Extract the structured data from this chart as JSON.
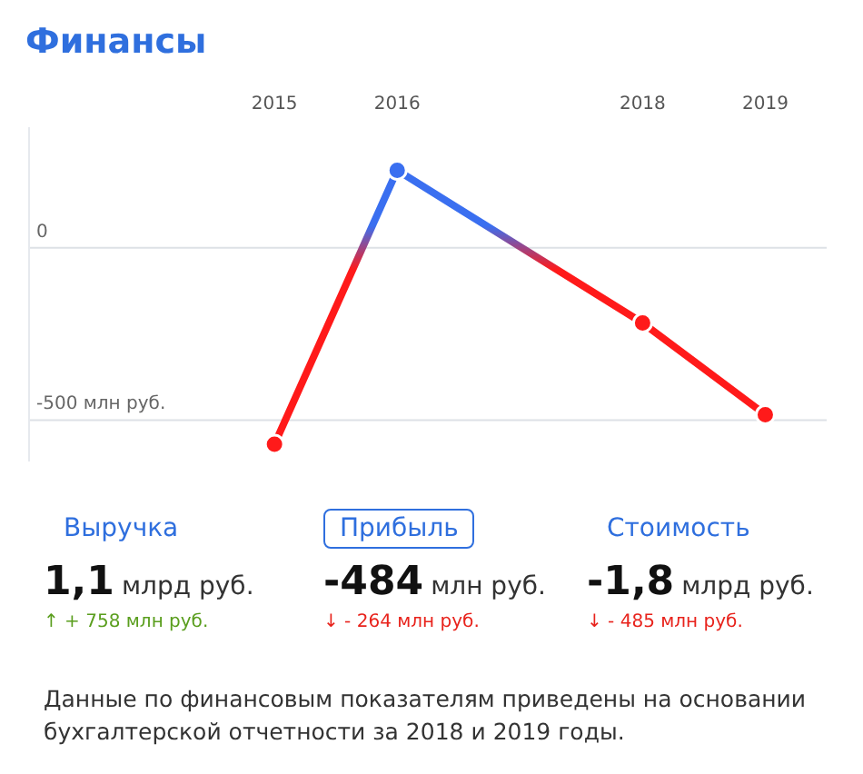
{
  "chart_data": {
    "type": "line",
    "title": "Финансы",
    "x": [
      2015,
      2016,
      2018,
      2019
    ],
    "series": [
      {
        "colors": [
          "#ff1a1a",
          "#3a6ff0",
          "#ff1a1a",
          "#ff1a1a"
        ],
        "values": [
          -570,
          225,
          -218,
          -484
        ]
      }
    ],
    "xlim": [
      2013,
      2019.5
    ],
    "xticks": [
      2015,
      2016,
      2018,
      2019
    ],
    "ylim": [
      -620,
      350
    ],
    "yticks": [
      0,
      {
        "value": -500,
        "label": "-500 млн руб."
      }
    ],
    "grid": "y",
    "marker": "circle",
    "line_style": "solid",
    "annotations": [
      "Выручка",
      "1,1",
      "млрд руб.",
      "↑ + 758 млн руб.",
      "Прибыль",
      "-484",
      "млн руб.",
      "↓ - 264 млн руб.",
      "Стоимость",
      "-1,8",
      "млрд руб.",
      "↓ - 485 млн руб.",
      "Данные по финансовым показателям приведены на основании бухгалтерской отчетности за 2018 и 2019 годы."
    ]
  }
}
